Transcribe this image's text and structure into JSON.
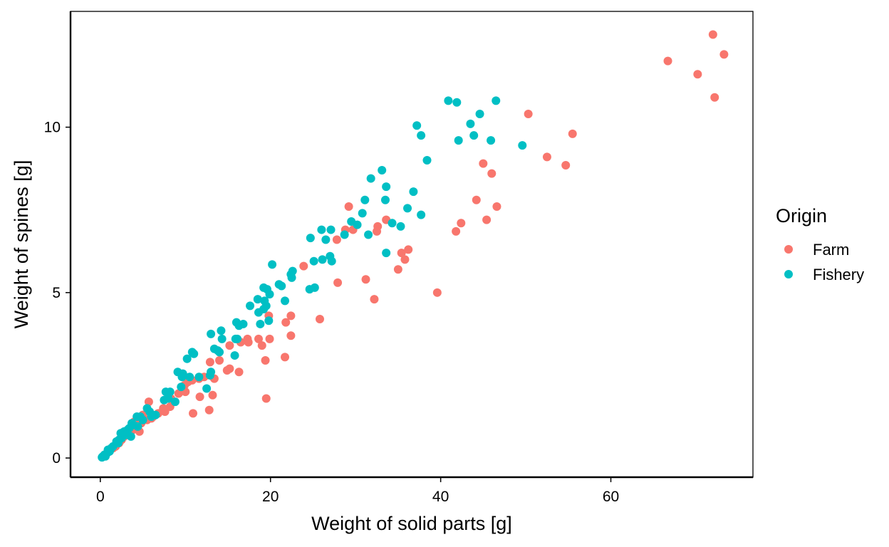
{
  "chart_data": {
    "type": "scatter",
    "xlabel": "Weight of solid parts  [g]",
    "ylabel": "Weight of spines  [g]",
    "xlim": [
      -3.5,
      76.7
    ],
    "ylim": [
      -0.58,
      13.5
    ],
    "xticks": [
      0,
      20,
      40,
      60
    ],
    "yticks": [
      0,
      5,
      10
    ],
    "grid": false,
    "legend": {
      "title": "Origin",
      "position": "right"
    },
    "series": [
      {
        "name": "Farm",
        "color": "#F8766D",
        "points": [
          [
            72.0,
            12.8
          ],
          [
            73.3,
            12.2
          ],
          [
            66.7,
            12.0
          ],
          [
            70.2,
            11.6
          ],
          [
            72.2,
            10.9
          ],
          [
            50.3,
            10.4
          ],
          [
            55.5,
            9.8
          ],
          [
            52.5,
            9.1
          ],
          [
            54.7,
            8.85
          ],
          [
            45.0,
            8.9
          ],
          [
            46.0,
            8.6
          ],
          [
            44.2,
            7.8
          ],
          [
            46.6,
            7.6
          ],
          [
            45.4,
            7.2
          ],
          [
            42.4,
            7.1
          ],
          [
            41.8,
            6.85
          ],
          [
            29.2,
            7.6
          ],
          [
            33.6,
            7.2
          ],
          [
            32.6,
            7.0
          ],
          [
            32.5,
            6.85
          ],
          [
            29.7,
            6.9
          ],
          [
            28.8,
            6.9
          ],
          [
            27.8,
            6.6
          ],
          [
            35.4,
            6.2
          ],
          [
            36.2,
            6.3
          ],
          [
            35.8,
            6.0
          ],
          [
            35.0,
            5.7
          ],
          [
            23.9,
            5.8
          ],
          [
            31.2,
            5.4
          ],
          [
            27.9,
            5.3
          ],
          [
            39.6,
            5.0
          ],
          [
            32.2,
            4.8
          ],
          [
            25.8,
            4.2
          ],
          [
            22.4,
            4.3
          ],
          [
            19.8,
            4.3
          ],
          [
            21.8,
            4.1
          ],
          [
            22.4,
            3.7
          ],
          [
            17.3,
            3.6
          ],
          [
            17.4,
            3.5
          ],
          [
            18.6,
            3.6
          ],
          [
            19.9,
            3.6
          ],
          [
            19.0,
            3.4
          ],
          [
            21.7,
            3.05
          ],
          [
            19.4,
            2.95
          ],
          [
            16.5,
            3.5
          ],
          [
            15.2,
            3.4
          ],
          [
            16.3,
            2.6
          ],
          [
            14.0,
            2.95
          ],
          [
            15.2,
            2.7
          ],
          [
            14.9,
            2.65
          ],
          [
            12.9,
            2.5
          ],
          [
            12.2,
            2.45
          ],
          [
            11.6,
            2.4
          ],
          [
            10.8,
            2.35
          ],
          [
            10.3,
            2.3
          ],
          [
            9.9,
            2.2
          ],
          [
            13.4,
            2.4
          ],
          [
            13.2,
            1.9
          ],
          [
            11.7,
            1.85
          ],
          [
            12.8,
            1.45
          ],
          [
            10.9,
            1.35
          ],
          [
            10.0,
            2.0
          ],
          [
            8.3,
            1.8
          ],
          [
            8.2,
            1.55
          ],
          [
            7.4,
            1.5
          ],
          [
            6.8,
            1.35
          ],
          [
            6.2,
            1.25
          ],
          [
            5.5,
            1.15
          ],
          [
            5.7,
            1.7
          ],
          [
            5.0,
            1.3
          ],
          [
            4.8,
            1.05
          ],
          [
            4.3,
            0.95
          ],
          [
            3.8,
            0.85
          ],
          [
            3.5,
            0.7
          ],
          [
            2.8,
            0.65
          ],
          [
            2.5,
            0.55
          ],
          [
            2.2,
            0.45
          ],
          [
            1.8,
            0.35
          ],
          [
            1.5,
            0.3
          ],
          [
            12.9,
            2.9
          ],
          [
            19.5,
            1.8
          ],
          [
            4.0,
            1.1
          ],
          [
            4.6,
            0.8
          ],
          [
            6.0,
            1.2
          ],
          [
            7.6,
            1.4
          ],
          [
            3.3,
            0.75
          ],
          [
            2.1,
            0.5
          ],
          [
            9.2,
            1.95
          ]
        ]
      },
      {
        "name": "Fishery",
        "color": "#00BFC4",
        "points": [
          [
            40.9,
            10.8
          ],
          [
            41.9,
            10.75
          ],
          [
            46.5,
            10.8
          ],
          [
            44.6,
            10.4
          ],
          [
            37.2,
            10.05
          ],
          [
            37.7,
            9.75
          ],
          [
            42.1,
            9.6
          ],
          [
            43.5,
            10.1
          ],
          [
            43.9,
            9.75
          ],
          [
            45.9,
            9.6
          ],
          [
            49.6,
            9.45
          ],
          [
            38.4,
            9.0
          ],
          [
            33.1,
            8.7
          ],
          [
            31.8,
            8.45
          ],
          [
            33.6,
            8.2
          ],
          [
            36.8,
            8.05
          ],
          [
            31.1,
            7.8
          ],
          [
            33.5,
            7.8
          ],
          [
            30.8,
            7.4
          ],
          [
            36.1,
            7.55
          ],
          [
            37.7,
            7.35
          ],
          [
            29.5,
            7.15
          ],
          [
            30.2,
            7.05
          ],
          [
            34.3,
            7.1
          ],
          [
            35.3,
            7.0
          ],
          [
            28.7,
            6.75
          ],
          [
            31.5,
            6.75
          ],
          [
            26.0,
            6.9
          ],
          [
            27.1,
            6.9
          ],
          [
            26.5,
            6.6
          ],
          [
            24.7,
            6.65
          ],
          [
            33.6,
            6.2
          ],
          [
            27.0,
            6.1
          ],
          [
            26.1,
            6.0
          ],
          [
            27.2,
            5.95
          ],
          [
            25.1,
            5.95
          ],
          [
            20.2,
            5.85
          ],
          [
            22.6,
            5.65
          ],
          [
            22.5,
            5.45
          ],
          [
            21.0,
            5.25
          ],
          [
            21.3,
            5.2
          ],
          [
            22.4,
            5.55
          ],
          [
            19.2,
            5.15
          ],
          [
            19.6,
            5.1
          ],
          [
            25.2,
            5.15
          ],
          [
            24.6,
            5.1
          ],
          [
            19.9,
            4.95
          ],
          [
            18.5,
            4.8
          ],
          [
            19.3,
            4.75
          ],
          [
            21.7,
            4.75
          ],
          [
            17.6,
            4.6
          ],
          [
            19.5,
            4.6
          ],
          [
            19.2,
            4.5
          ],
          [
            18.6,
            4.4
          ],
          [
            16.0,
            4.1
          ],
          [
            16.3,
            4.0
          ],
          [
            16.8,
            4.05
          ],
          [
            18.8,
            4.05
          ],
          [
            19.8,
            4.15
          ],
          [
            13.0,
            3.75
          ],
          [
            14.2,
            3.85
          ],
          [
            14.3,
            3.6
          ],
          [
            15.9,
            3.6
          ],
          [
            16.1,
            3.6
          ],
          [
            13.4,
            3.3
          ],
          [
            13.8,
            3.25
          ],
          [
            14.0,
            3.2
          ],
          [
            15.8,
            3.1
          ],
          [
            10.8,
            3.2
          ],
          [
            11.0,
            3.15
          ],
          [
            10.2,
            3.0
          ],
          [
            9.1,
            2.6
          ],
          [
            9.7,
            2.55
          ],
          [
            10.5,
            2.45
          ],
          [
            9.6,
            2.45
          ],
          [
            11.6,
            2.45
          ],
          [
            13.0,
            2.6
          ],
          [
            12.9,
            2.5
          ],
          [
            12.5,
            2.1
          ],
          [
            9.5,
            2.15
          ],
          [
            7.7,
            2.0
          ],
          [
            8.2,
            2.0
          ],
          [
            8.0,
            1.8
          ],
          [
            7.5,
            1.75
          ],
          [
            8.8,
            1.7
          ],
          [
            5.5,
            1.5
          ],
          [
            5.8,
            1.4
          ],
          [
            6.5,
            1.3
          ],
          [
            4.7,
            1.25
          ],
          [
            4.3,
            1.25
          ],
          [
            5.0,
            1.15
          ],
          [
            3.7,
            1.05
          ],
          [
            3.9,
            1.0
          ],
          [
            4.4,
            0.95
          ],
          [
            3.4,
            0.9
          ],
          [
            3.2,
            0.85
          ],
          [
            2.8,
            0.8
          ],
          [
            2.4,
            0.75
          ],
          [
            3.6,
            0.65
          ],
          [
            2.5,
            0.6
          ],
          [
            1.9,
            0.5
          ],
          [
            2.1,
            0.45
          ],
          [
            1.5,
            0.35
          ],
          [
            1.1,
            0.2
          ],
          [
            0.8,
            0.15
          ],
          [
            0.5,
            0.1
          ],
          [
            0.3,
            0.05
          ],
          [
            0.2,
            0.02
          ],
          [
            0.9,
            0.25
          ],
          [
            1.3,
            0.3
          ],
          [
            6.0,
            1.25
          ],
          [
            3.0,
            0.7
          ],
          [
            2.2,
            0.55
          ],
          [
            0.6,
            0.05
          ]
        ]
      }
    ]
  }
}
